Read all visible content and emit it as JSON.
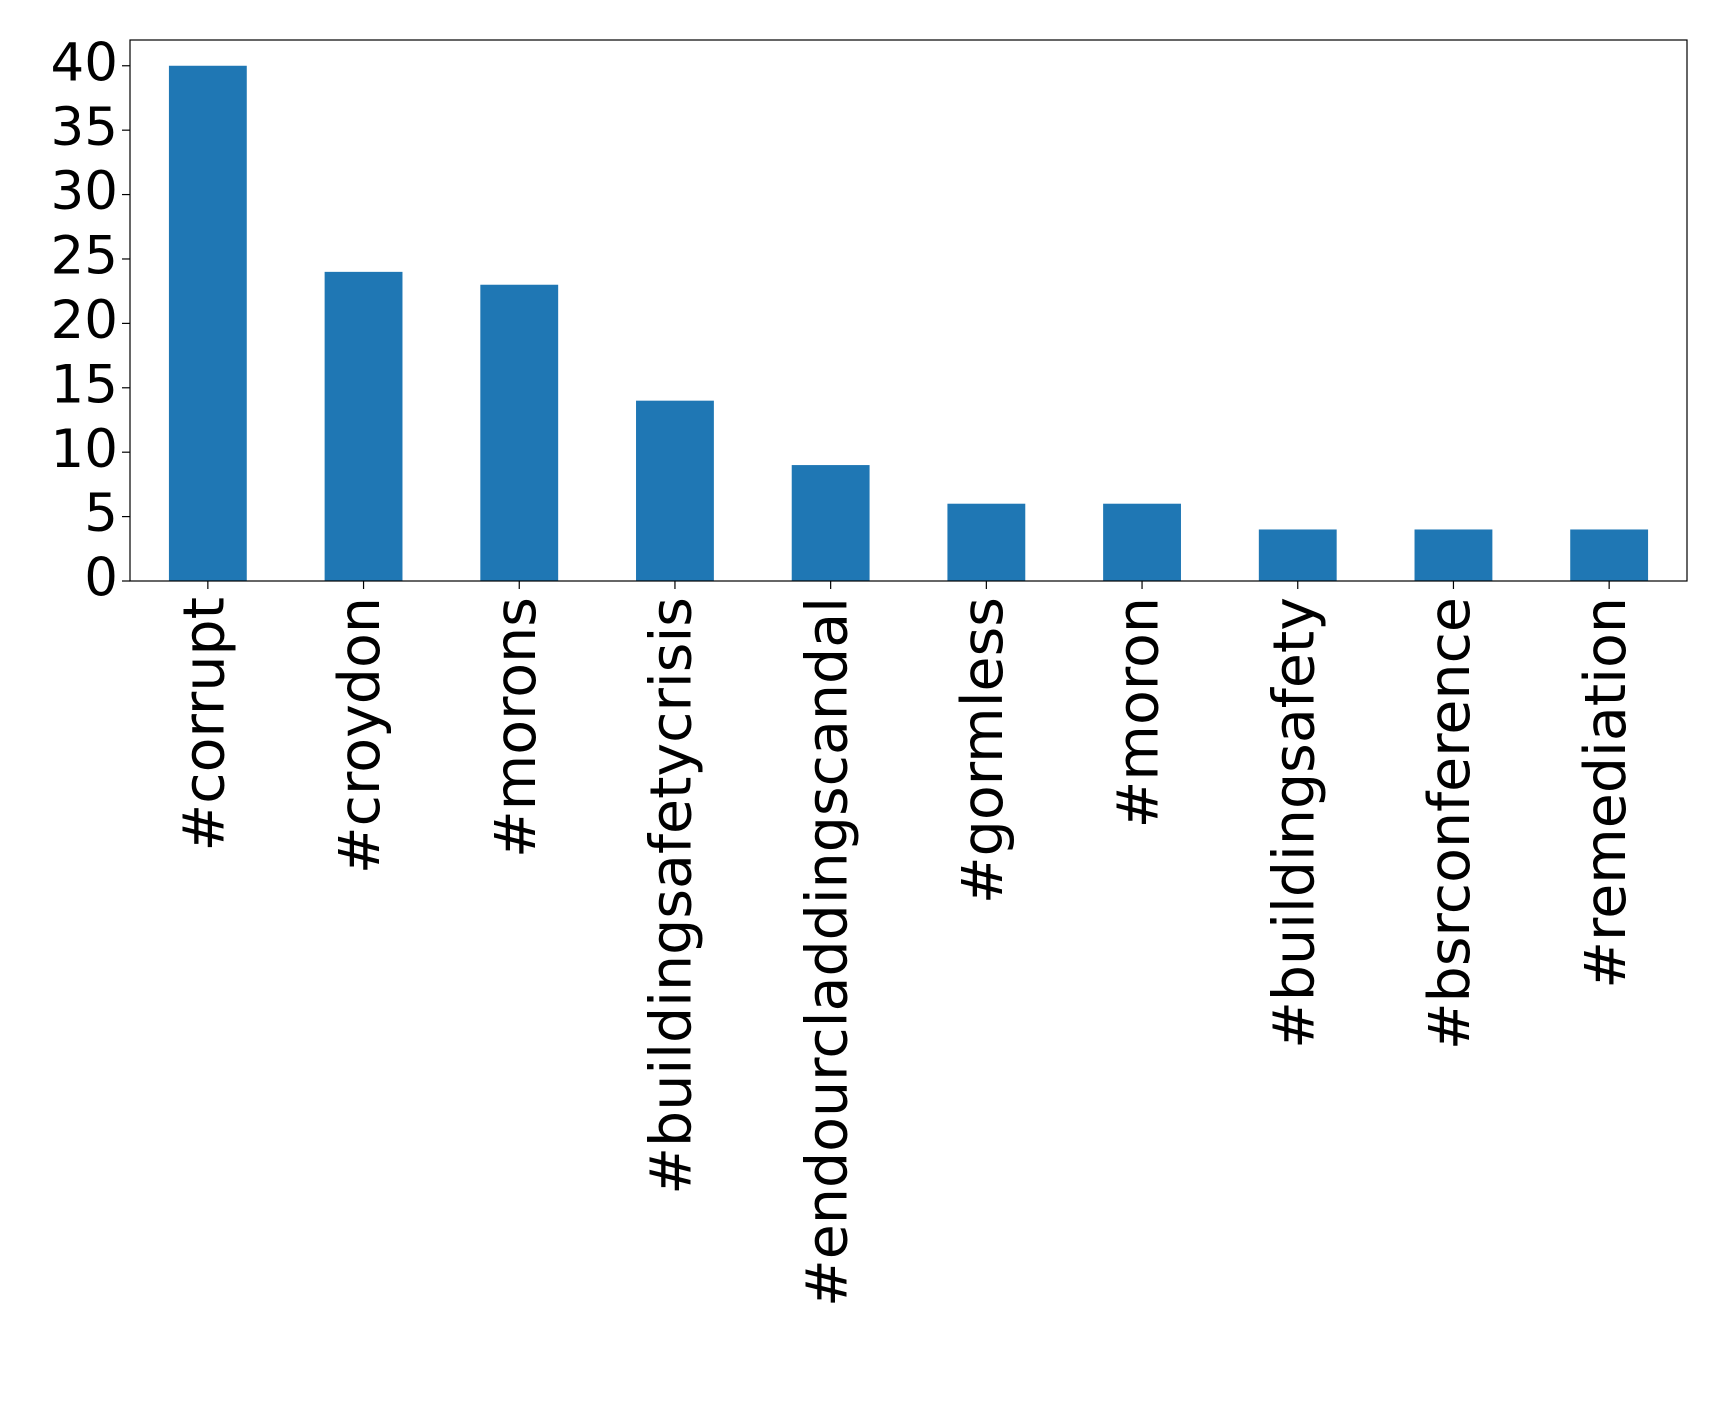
{
  "chart_data": {
    "type": "bar",
    "categories": [
      "#corrupt",
      "#croydon",
      "#morons",
      "#buildingsafetycrisis",
      "#endourcladdingscandal",
      "#gormless",
      "#moron",
      "#buildingsafety",
      "#bsrconference",
      "#remediation"
    ],
    "values": [
      40,
      24,
      23,
      14,
      9,
      6,
      6,
      4,
      4,
      4
    ],
    "color": "#1f77b4",
    "ylim": [
      0,
      42
    ],
    "yticks": [
      0,
      5,
      10,
      15,
      20,
      25,
      30,
      35,
      40
    ],
    "grid": false
  }
}
